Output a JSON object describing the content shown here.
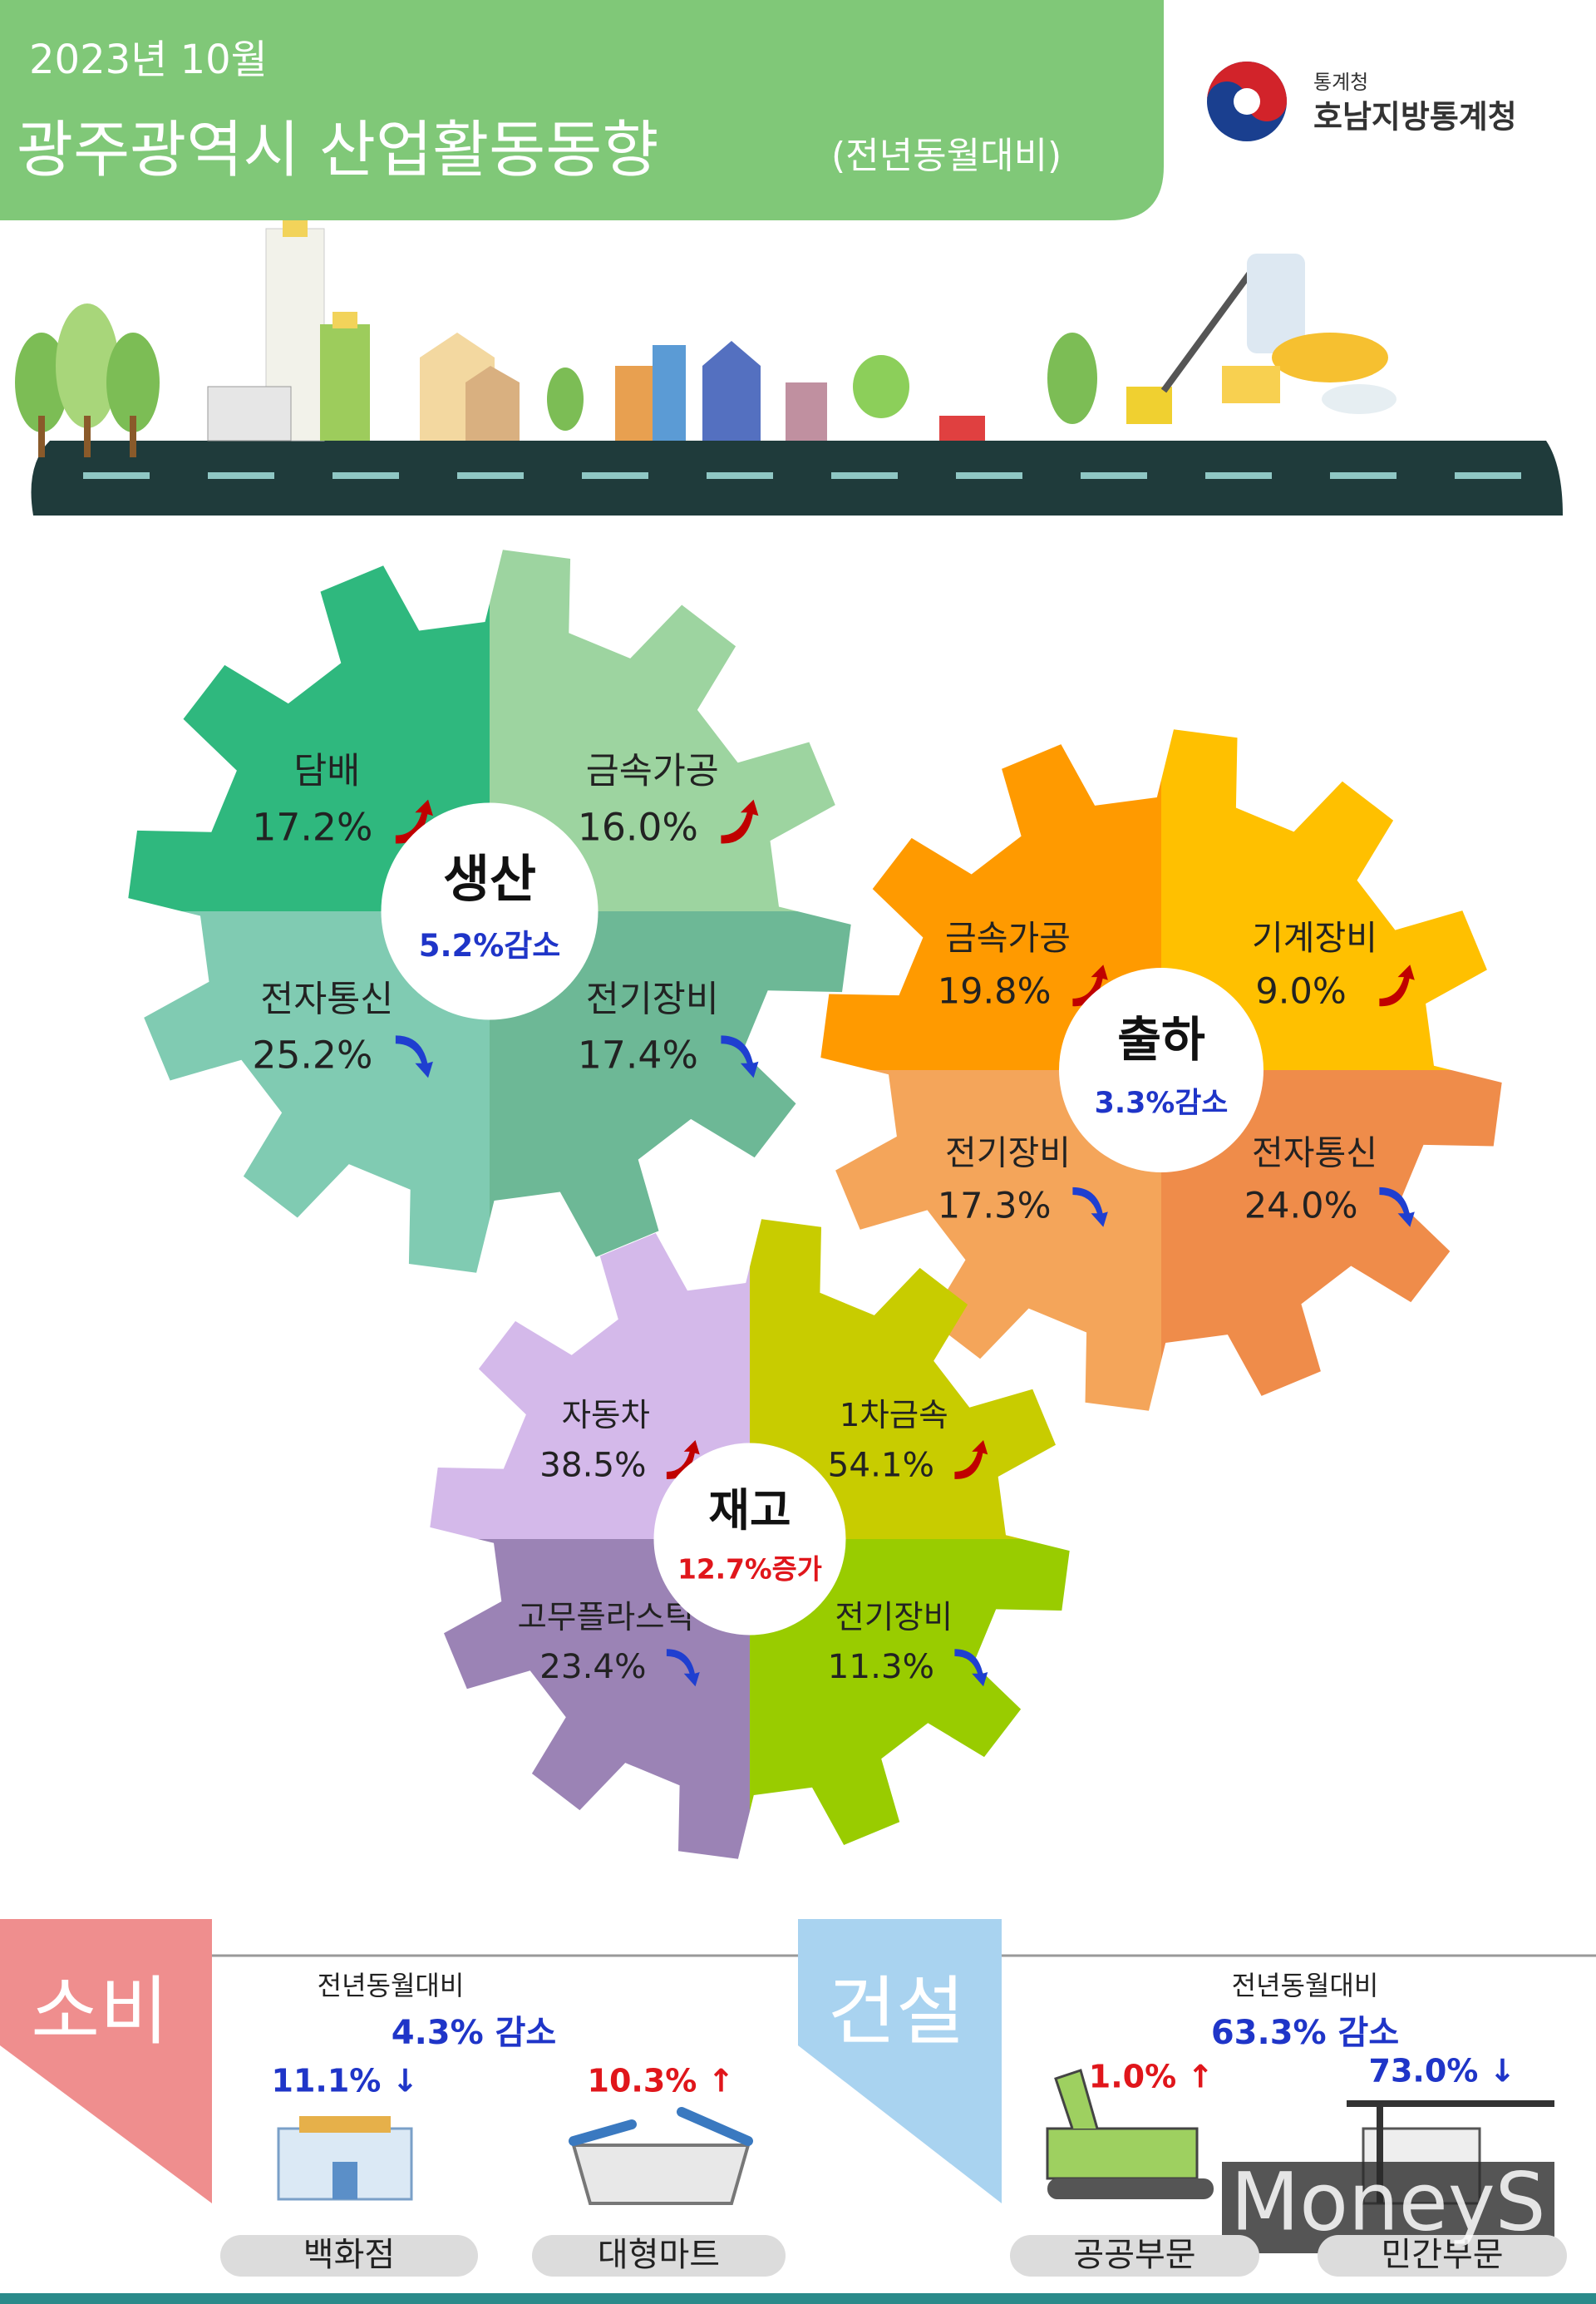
{
  "header": {
    "date": "2023년 10월",
    "title": "광주광역시 산업활동동향",
    "subtitle": "(전년동월대비)",
    "agency_small": "통계청",
    "agency": "호남지방통계청"
  },
  "gears": [
    {
      "label": "생산",
      "summary": "5.2%감소",
      "summary_color": "#1f35c8",
      "items": [
        {
          "name": "담배",
          "value": "17.2%",
          "trend": "up",
          "color": "#2fb87e"
        },
        {
          "name": "금속가공",
          "value": "16.0%",
          "trend": "up",
          "color": "#9dd4a0"
        },
        {
          "name": "전자통신",
          "value": "25.2%",
          "trend": "down",
          "color": "#80cbb2"
        },
        {
          "name": "전기장비",
          "value": "17.4%",
          "trend": "down",
          "color": "#6db896"
        }
      ]
    },
    {
      "label": "출하",
      "summary": "3.3%감소",
      "summary_color": "#1f35c8",
      "items": [
        {
          "name": "금속가공",
          "value": "19.8%",
          "trend": "up",
          "color": "#ff9a00"
        },
        {
          "name": "기계장비",
          "value": "9.0%",
          "trend": "up",
          "color": "#ffc000"
        },
        {
          "name": "전기장비",
          "value": "17.3%",
          "trend": "down",
          "color": "#f4a55a"
        },
        {
          "name": "전자통신",
          "value": "24.0%",
          "trend": "down",
          "color": "#ef8c4a"
        }
      ]
    },
    {
      "label": "재고",
      "summary": "12.7%증가",
      "summary_color": "#e0161b",
      "items": [
        {
          "name": "자동차",
          "value": "38.5%",
          "trend": "up",
          "color": "#d4b9ea"
        },
        {
          "name": "1차금속",
          "value": "54.1%",
          "trend": "up",
          "color": "#c8cc00"
        },
        {
          "name": "고무플라스틱",
          "value": "23.4%",
          "trend": "down",
          "color": "#9b83b5"
        },
        {
          "name": "전기장비",
          "value": "11.3%",
          "trend": "down",
          "color": "#99cc00"
        }
      ]
    }
  ],
  "sections": [
    {
      "label": "소비",
      "caption": "전년동월대비",
      "summary": "4.3% 감소",
      "items": [
        {
          "name": "백화점",
          "value": "11.1% ↓",
          "color": "#1f35c8"
        },
        {
          "name": "대형마트",
          "value": "10.3% ↑",
          "color": "#e0161b"
        }
      ]
    },
    {
      "label": "건설",
      "caption": "전년동월대비",
      "summary": "63.3% 감소",
      "items": [
        {
          "name": "공공부문",
          "value": "1.0% ↑",
          "color": "#e0161b"
        },
        {
          "name": "민간부문",
          "value": "73.0% ↓",
          "color": "#1f35c8"
        }
      ]
    }
  ],
  "watermark": "MoneyS"
}
